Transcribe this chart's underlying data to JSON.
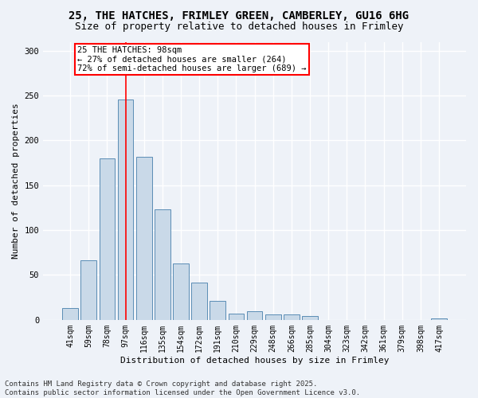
{
  "title_line1": "25, THE HATCHES, FRIMLEY GREEN, CAMBERLEY, GU16 6HG",
  "title_line2": "Size of property relative to detached houses in Frimley",
  "xlabel": "Distribution of detached houses by size in Frimley",
  "ylabel": "Number of detached properties",
  "categories": [
    "41sqm",
    "59sqm",
    "78sqm",
    "97sqm",
    "116sqm",
    "135sqm",
    "154sqm",
    "172sqm",
    "191sqm",
    "210sqm",
    "229sqm",
    "248sqm",
    "266sqm",
    "285sqm",
    "304sqm",
    "323sqm",
    "342sqm",
    "361sqm",
    "379sqm",
    "398sqm",
    "417sqm"
  ],
  "values": [
    13,
    66,
    180,
    246,
    182,
    123,
    63,
    42,
    21,
    7,
    10,
    6,
    6,
    4,
    0,
    0,
    0,
    0,
    0,
    0,
    2
  ],
  "bar_color": "#c9d9e8",
  "bar_edge_color": "#5a8db5",
  "red_line_x": 3,
  "annotation_text": "25 THE HATCHES: 98sqm\n← 27% of detached houses are smaller (264)\n72% of semi-detached houses are larger (689) →",
  "annotation_box_color": "white",
  "annotation_box_edge_color": "red",
  "ylim": [
    0,
    310
  ],
  "yticks": [
    0,
    50,
    100,
    150,
    200,
    250,
    300
  ],
  "footer_line1": "Contains HM Land Registry data © Crown copyright and database right 2025.",
  "footer_line2": "Contains public sector information licensed under the Open Government Licence v3.0.",
  "bg_color": "#eef2f8",
  "grid_color": "#ffffff",
  "title_fontsize": 10,
  "subtitle_fontsize": 9,
  "axis_label_fontsize": 8,
  "tick_fontsize": 7,
  "footer_fontsize": 6.5,
  "annotation_fontsize": 7.5
}
